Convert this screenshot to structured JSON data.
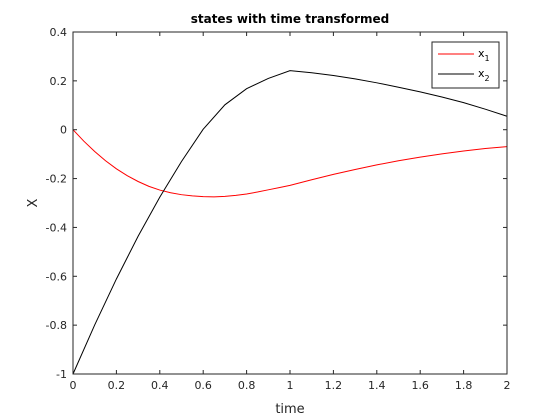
{
  "chart_data": {
    "type": "line",
    "title": "states with time transformed",
    "xlabel": "time",
    "ylabel": "X",
    "xlim": [
      0,
      2
    ],
    "ylim": [
      -1,
      0.4
    ],
    "xticks": [
      0,
      0.2,
      0.4,
      0.6,
      0.8,
      1,
      1.2,
      1.4,
      1.6,
      1.8,
      2
    ],
    "xtick_labels": [
      "0",
      "0.2",
      "0.4",
      "0.6",
      "0.8",
      "1",
      "1.2",
      "1.4",
      "1.6",
      "1.8",
      "2"
    ],
    "yticks": [
      -1,
      -0.8,
      -0.6,
      -0.4,
      -0.2,
      0,
      0.2,
      0.4
    ],
    "ytick_labels": [
      "-1",
      "-0.8",
      "-0.6",
      "-0.4",
      "-0.2",
      "0",
      "0.2",
      "0.4"
    ],
    "grid": false,
    "legend_position": "top-right",
    "series": [
      {
        "name": "x",
        "subscript": "1",
        "color": "#ff0000",
        "x": [
          0,
          0.05,
          0.1,
          0.15,
          0.2,
          0.25,
          0.3,
          0.35,
          0.4,
          0.45,
          0.5,
          0.55,
          0.6,
          0.65,
          0.7,
          0.75,
          0.8,
          0.85,
          0.9,
          0.95,
          1.0,
          1.1,
          1.2,
          1.3,
          1.4,
          1.5,
          1.6,
          1.7,
          1.8,
          1.9,
          2.0
        ],
        "y": [
          0,
          -0.047,
          -0.089,
          -0.127,
          -0.16,
          -0.188,
          -0.212,
          -0.232,
          -0.247,
          -0.258,
          -0.266,
          -0.271,
          -0.274,
          -0.275,
          -0.273,
          -0.269,
          -0.263,
          -0.255,
          -0.246,
          -0.237,
          -0.228,
          -0.205,
          -0.183,
          -0.163,
          -0.144,
          -0.127,
          -0.112,
          -0.099,
          -0.087,
          -0.077,
          -0.069
        ]
      },
      {
        "name": "x",
        "subscript": "2",
        "color": "#000000",
        "x": [
          0,
          0.1,
          0.2,
          0.3,
          0.4,
          0.5,
          0.6,
          0.7,
          0.8,
          0.9,
          1.0,
          1.1,
          1.2,
          1.3,
          1.4,
          1.5,
          1.6,
          1.7,
          1.8,
          1.9,
          2.0
        ],
        "y": [
          -1,
          -0.799,
          -0.611,
          -0.436,
          -0.276,
          -0.13,
          0.002,
          0.102,
          0.168,
          0.21,
          0.242,
          0.233,
          0.222,
          0.208,
          0.192,
          0.174,
          0.155,
          0.134,
          0.111,
          0.084,
          0.055
        ]
      }
    ]
  }
}
